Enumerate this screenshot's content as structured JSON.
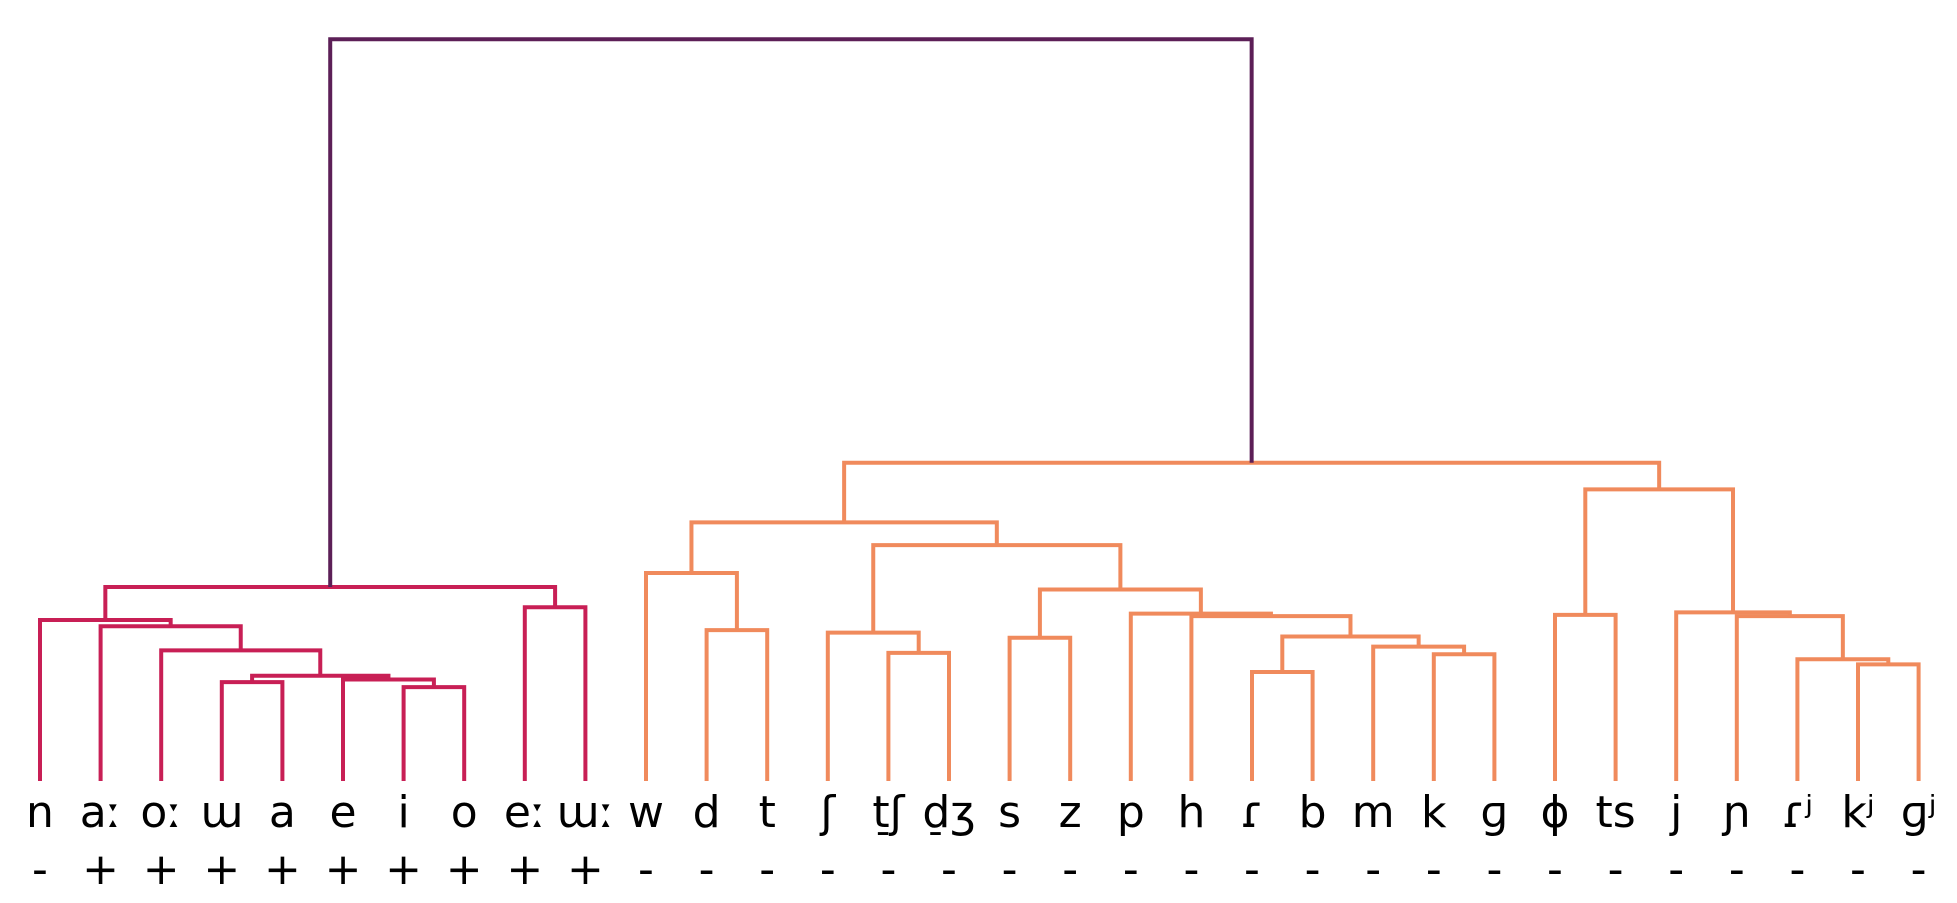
{
  "chart_data": {
    "type": "dendrogram",
    "leaves": [
      {
        "label": "n",
        "feature": "-"
      },
      {
        "label": "aː",
        "feature": "+"
      },
      {
        "label": "oː",
        "feature": "+"
      },
      {
        "label": "ɯ",
        "feature": "+"
      },
      {
        "label": "a",
        "feature": "+"
      },
      {
        "label": "e",
        "feature": "+"
      },
      {
        "label": "i",
        "feature": "+"
      },
      {
        "label": "o",
        "feature": "+"
      },
      {
        "label": "eː",
        "feature": "+"
      },
      {
        "label": "ɯː",
        "feature": "+"
      },
      {
        "label": "w",
        "feature": "-"
      },
      {
        "label": "d",
        "feature": "-"
      },
      {
        "label": "t",
        "feature": "-"
      },
      {
        "label": "ʃ",
        "feature": "-"
      },
      {
        "label": "t̠ʃ",
        "feature": "-"
      },
      {
        "label": "d̠ʒ",
        "feature": "-"
      },
      {
        "label": "s",
        "feature": "-"
      },
      {
        "label": "z",
        "feature": "-"
      },
      {
        "label": "p",
        "feature": "-"
      },
      {
        "label": "h",
        "feature": "-"
      },
      {
        "label": "ɾ",
        "feature": "-"
      },
      {
        "label": "b",
        "feature": "-"
      },
      {
        "label": "m",
        "feature": "-"
      },
      {
        "label": "k",
        "feature": "-"
      },
      {
        "label": "ɡ",
        "feature": "-"
      },
      {
        "label": "ɸ",
        "feature": "-"
      },
      {
        "label": "ts",
        "feature": "-"
      },
      {
        "label": "j",
        "feature": "-"
      },
      {
        "label": "ɲ",
        "feature": "-"
      },
      {
        "label": "ɾʲ",
        "feature": "-"
      },
      {
        "label": "kʲ",
        "feature": "-"
      },
      {
        "label": "ɡʲ",
        "feature": "-"
      }
    ],
    "colors": {
      "root": "#5c1f57",
      "cluster_vowel": "#c81f55",
      "cluster_consonant": "#f08a5c"
    },
    "merges": [
      {
        "a": 6,
        "b": 7,
        "h": 0.074,
        "c": "cluster_vowel"
      },
      {
        "a": 3,
        "b": 4,
        "h": 0.078,
        "c": "cluster_vowel"
      },
      {
        "a": 5,
        "b": 32,
        "h": 0.08,
        "c": "cluster_vowel"
      },
      {
        "a": 33,
        "b": 34,
        "h": 0.083,
        "c": "cluster_vowel"
      },
      {
        "a": 2,
        "b": 35,
        "h": 0.103,
        "c": "cluster_vowel"
      },
      {
        "a": 1,
        "b": 36,
        "h": 0.122,
        "c": "cluster_vowel"
      },
      {
        "a": 0,
        "b": 37,
        "h": 0.127,
        "c": "cluster_vowel"
      },
      {
        "a": 8,
        "b": 9,
        "h": 0.137,
        "c": "cluster_vowel"
      },
      {
        "a": 38,
        "b": 39,
        "h": 0.153,
        "c": "cluster_vowel"
      },
      {
        "a": 11,
        "b": 12,
        "h": 0.119,
        "c": "cluster_consonant"
      },
      {
        "a": 10,
        "b": 41,
        "h": 0.164,
        "c": "cluster_consonant"
      },
      {
        "a": 14,
        "b": 15,
        "h": 0.101,
        "c": "cluster_consonant"
      },
      {
        "a": 13,
        "b": 43,
        "h": 0.117,
        "c": "cluster_consonant"
      },
      {
        "a": 16,
        "b": 17,
        "h": 0.113,
        "c": "cluster_consonant"
      },
      {
        "a": 20,
        "b": 21,
        "h": 0.086,
        "c": "cluster_consonant"
      },
      {
        "a": 23,
        "b": 24,
        "h": 0.1,
        "c": "cluster_consonant"
      },
      {
        "a": 22,
        "b": 47,
        "h": 0.106,
        "c": "cluster_consonant"
      },
      {
        "a": 46,
        "b": 48,
        "h": 0.114,
        "c": "cluster_consonant"
      },
      {
        "a": 19,
        "b": 49,
        "h": 0.13,
        "c": "cluster_consonant"
      },
      {
        "a": 18,
        "b": 50,
        "h": 0.132,
        "c": "cluster_consonant"
      },
      {
        "a": 45,
        "b": 51,
        "h": 0.151,
        "c": "cluster_consonant"
      },
      {
        "a": 44,
        "b": 52,
        "h": 0.186,
        "c": "cluster_consonant"
      },
      {
        "a": 42,
        "b": 53,
        "h": 0.204,
        "c": "cluster_consonant"
      },
      {
        "a": 25,
        "b": 26,
        "h": 0.131,
        "c": "cluster_consonant"
      },
      {
        "a": 30,
        "b": 31,
        "h": 0.092,
        "c": "cluster_consonant"
      },
      {
        "a": 29,
        "b": 56,
        "h": 0.096,
        "c": "cluster_consonant"
      },
      {
        "a": 28,
        "b": 57,
        "h": 0.13,
        "c": "cluster_consonant"
      },
      {
        "a": 27,
        "b": 58,
        "h": 0.133,
        "c": "cluster_consonant"
      },
      {
        "a": 55,
        "b": 59,
        "h": 0.23,
        "c": "cluster_consonant"
      },
      {
        "a": 54,
        "b": 60,
        "h": 0.251,
        "c": "cluster_consonant"
      },
      {
        "a": 40,
        "b": 61,
        "h": 0.585,
        "c": "root"
      }
    ]
  }
}
